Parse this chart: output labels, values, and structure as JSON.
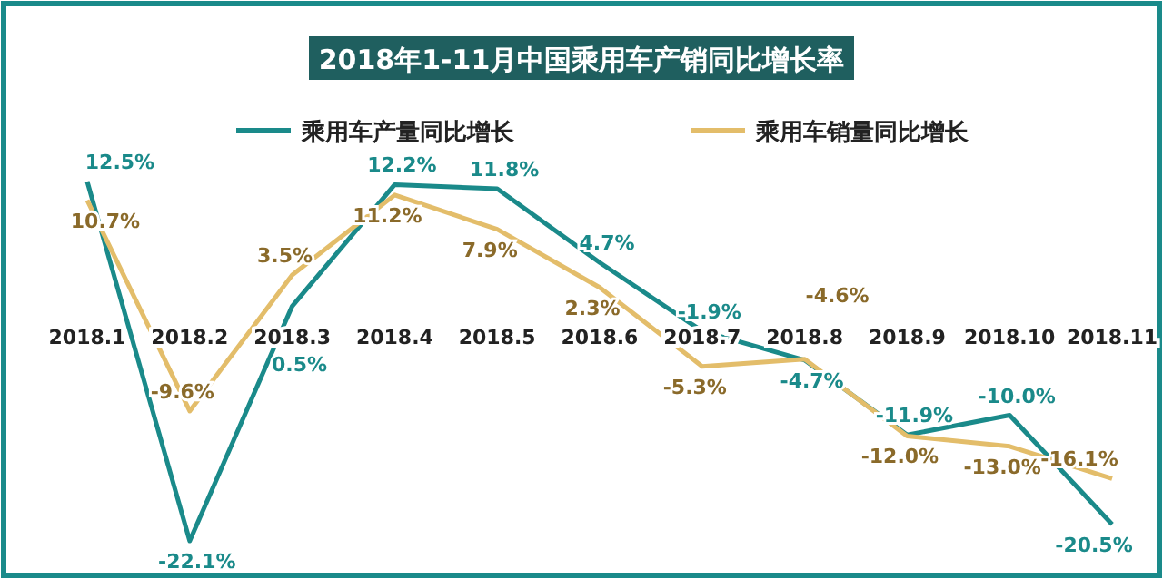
{
  "chart_data": {
    "type": "line",
    "title": "2018年1-11月中国乘用车产销同比增长率",
    "categories": [
      "2018.1",
      "2018.2",
      "2018.3",
      "2018.4",
      "2018.5",
      "2018.6",
      "2018.7",
      "2018.8",
      "2018.9",
      "2018.10",
      "2018.11"
    ],
    "series": [
      {
        "name": "乘用车产量同比增长",
        "color": "#1a8a8a",
        "values": [
          12.5,
          -22.1,
          0.5,
          12.2,
          11.8,
          4.7,
          -1.9,
          -4.7,
          -11.9,
          -10.0,
          -20.5
        ],
        "value_labels": [
          "12.5%",
          "-22.1%",
          "0.5%",
          "12.2%",
          "11.8%",
          "4.7%",
          "-1.9%",
          "-4.7%",
          "-11.9%",
          "-10.0%",
          "-20.5%"
        ]
      },
      {
        "name": "乘用车销量同比增长",
        "color": "#e3bd6a",
        "values": [
          10.7,
          -9.6,
          3.5,
          11.2,
          7.9,
          2.3,
          -5.3,
          -4.6,
          -12.0,
          -13.0,
          -16.1
        ],
        "value_labels": [
          "10.7%",
          "-9.6%",
          "3.5%",
          "11.2%",
          "7.9%",
          "2.3%",
          "-5.3%",
          "-4.6%",
          "-12.0%",
          "-13.0%",
          "-16.1%"
        ]
      }
    ],
    "legend": "top",
    "marker": "none",
    "line_style": "solid",
    "grid": false
  }
}
